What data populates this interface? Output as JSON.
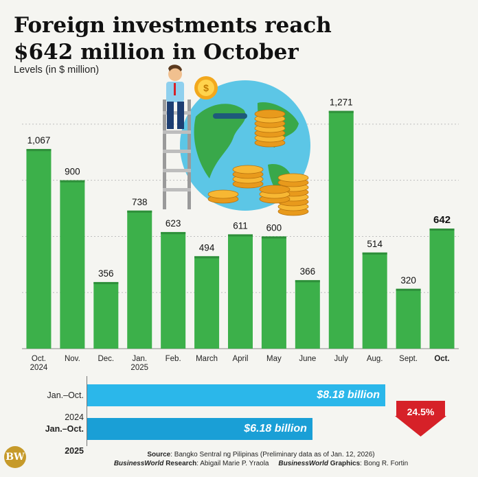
{
  "title_line1": "Foreign investments reach",
  "title_line2": "$642 million in October",
  "subtitle": "Levels (in $ million)",
  "chart_data": {
    "type": "bar",
    "title": "Foreign investments reach $642 million in October",
    "ylabel": "Levels (in $ million)",
    "categories": [
      [
        "Oct.",
        "2024"
      ],
      [
        "Nov."
      ],
      [
        "Dec."
      ],
      [
        "Jan.",
        "2025"
      ],
      [
        "Feb."
      ],
      [
        "March"
      ],
      [
        "April"
      ],
      [
        "May"
      ],
      [
        "June"
      ],
      [
        "July"
      ],
      [
        "Aug."
      ],
      [
        "Sept."
      ],
      [
        "Oct."
      ]
    ],
    "values": [
      1067,
      900,
      356,
      738,
      623,
      494,
      611,
      600,
      366,
      1271,
      514,
      320,
      642
    ],
    "value_labels": [
      "1,067",
      "900",
      "356",
      "738",
      "623",
      "494",
      "611",
      "600",
      "366",
      "1,271",
      "514",
      "320",
      "642"
    ],
    "highlight_index": 12,
    "ylim": [
      0,
      1350
    ],
    "grid": true,
    "bar_color": "#3cb04a"
  },
  "comparison": {
    "rows": [
      {
        "label": "Jan.–Oct. 2024",
        "value_text": "$8.18 billion",
        "value": 8.18,
        "color": "#2bb7ea",
        "bold": false
      },
      {
        "label": "Jan.–Oct. 2025",
        "value_text": "$6.18 billion",
        "value": 6.18,
        "color": "#1a9fd6",
        "bold": true
      }
    ],
    "change_text": "24.5%",
    "change_color": "#d62128"
  },
  "footer": {
    "source_label": "Source",
    "source_text": ": Bangko Sentral ng Pilipinas (Preliminary data as of Jan. 12, 2026)",
    "research_brand": "BusinessWorld",
    "research_label": " Research",
    "research_name": ": Abigail Marie P. Yraola",
    "graphics_brand": "BusinessWorld",
    "graphics_label": " Graphics",
    "graphics_name": ": Bong R. Fortin"
  },
  "logo_text": "BW"
}
